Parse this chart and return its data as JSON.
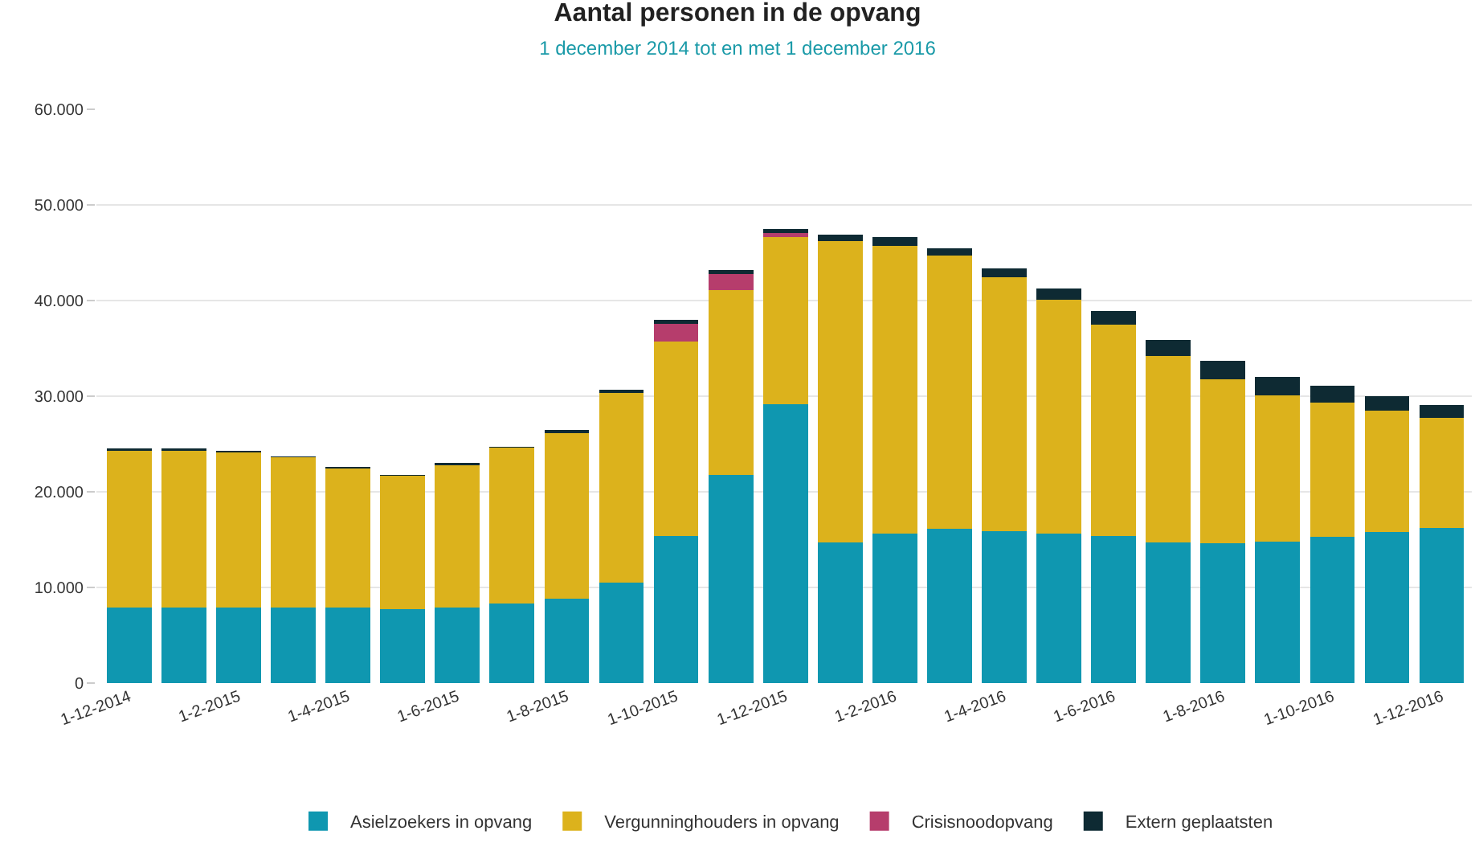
{
  "chart_data": {
    "type": "bar",
    "title": "Aantal personen in de opvang",
    "subtitle": "1 december 2014 tot en met 1 december 2016",
    "stacked": true,
    "categories": [
      "1-12-2014",
      null,
      "1-2-2015",
      null,
      "1-4-2015",
      null,
      "1-6-2015",
      null,
      "1-8-2015",
      null,
      "1-10-2015",
      null,
      "1-12-2015",
      null,
      "1-2-2016",
      null,
      "1-4-2016",
      null,
      "1-6-2016",
      null,
      "1-8-2016",
      null,
      "1-10-2016",
      null,
      "1-12-2016"
    ],
    "series": [
      {
        "name": "Asielzoekers in opvang",
        "color": "#0f97b0",
        "values": [
          7900,
          7900,
          7900,
          7900,
          7900,
          7700,
          7900,
          8300,
          8800,
          10500,
          15400,
          21800,
          29200,
          14700,
          15600,
          16100,
          15900,
          15600,
          15400,
          14700,
          14600,
          14800,
          15300,
          15800,
          16200
        ]
      },
      {
        "name": "Vergunninghouders in opvang",
        "color": "#dcb21c",
        "values": [
          16400,
          16400,
          16200,
          15700,
          14500,
          14000,
          14900,
          16300,
          17300,
          19800,
          20300,
          19300,
          17400,
          31500,
          30100,
          28600,
          26500,
          24500,
          22100,
          19500,
          17200,
          15300,
          14000,
          12700,
          11500
        ]
      },
      {
        "name": "Crisisnoodopvang",
        "color": "#b63d6c",
        "values": [
          0,
          0,
          0,
          0,
          0,
          0,
          0,
          0,
          0,
          0,
          1900,
          1700,
          500,
          0,
          0,
          0,
          0,
          0,
          0,
          0,
          0,
          0,
          0,
          0,
          0
        ]
      },
      {
        "name": "Extern geplaatsten",
        "color": "#0e2a33",
        "values": [
          200,
          200,
          200,
          100,
          200,
          100,
          200,
          100,
          400,
          400,
          400,
          400,
          400,
          700,
          900,
          800,
          1000,
          1200,
          1400,
          1700,
          1900,
          1900,
          1800,
          1500,
          1400
        ]
      }
    ],
    "ylim": [
      0,
      60000
    ],
    "yticks": [
      {
        "value": 0,
        "label": "0"
      },
      {
        "value": 10000,
        "label": "10.000"
      },
      {
        "value": 20000,
        "label": "20.000"
      },
      {
        "value": 30000,
        "label": "30.000"
      },
      {
        "value": 40000,
        "label": "40.000"
      },
      {
        "value": 50000,
        "label": "50.000"
      },
      {
        "value": 60000,
        "label": "60.000"
      }
    ],
    "grid": "y",
    "legend": "bottom"
  }
}
